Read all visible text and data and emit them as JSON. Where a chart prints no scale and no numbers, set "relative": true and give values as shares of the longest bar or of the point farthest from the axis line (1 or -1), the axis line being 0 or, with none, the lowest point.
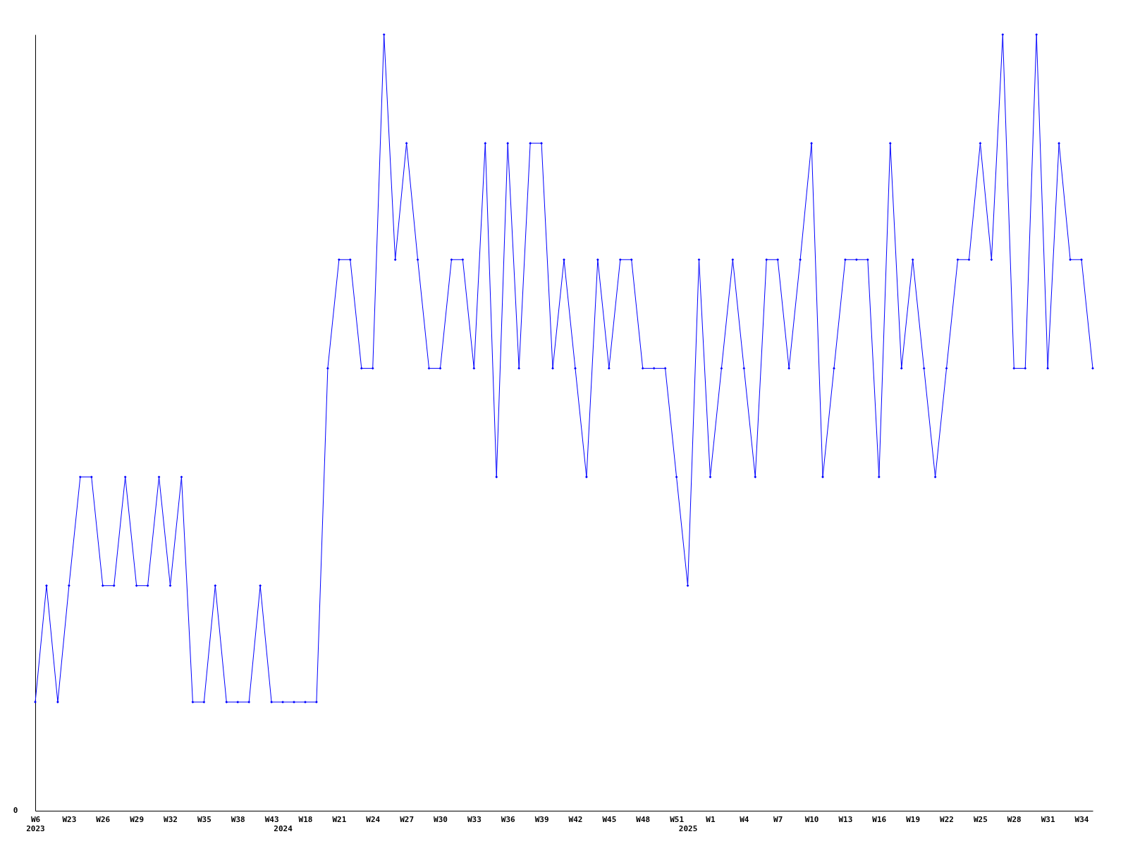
{
  "chart_data": {
    "type": "line",
    "relative": true,
    "marker": "diamond",
    "line_style": "solid",
    "annotations": [
      "0"
    ],
    "categories": [
      "W6\n2023",
      null,
      null,
      "W23",
      null,
      null,
      "W26",
      null,
      null,
      "W29",
      null,
      null,
      "W32",
      null,
      null,
      "W35",
      null,
      null,
      "W38",
      null,
      null,
      "W43",
      "\n2024",
      null,
      "W18",
      null,
      null,
      "W21",
      null,
      null,
      "W24",
      null,
      null,
      "W27",
      null,
      null,
      "W30",
      null,
      null,
      "W33",
      null,
      null,
      "W36",
      null,
      null,
      "W39",
      null,
      null,
      "W42",
      null,
      null,
      "W45",
      null,
      null,
      "W48",
      null,
      null,
      "W51",
      "\n2025",
      null,
      "W1",
      null,
      null,
      "W4",
      null,
      null,
      "W7",
      null,
      null,
      "W10",
      null,
      null,
      "W13",
      null,
      null,
      "W16",
      null,
      null,
      "W19",
      null,
      null,
      "W22",
      null,
      null,
      "W25",
      null,
      null,
      "W28",
      null,
      null,
      "W31",
      null,
      null,
      "W34",
      null
    ],
    "series": [
      {
        "color": "#0000ff",
        "values": [
          0.14,
          0.29,
          0.14,
          0.29,
          0.43,
          0.43,
          0.29,
          0.29,
          0.43,
          0.29,
          0.29,
          0.43,
          0.29,
          0.43,
          0.14,
          0.14,
          0.29,
          0.14,
          0.14,
          0.14,
          0.29,
          0.14,
          0.14,
          0.14,
          0.14,
          0.14,
          0.57,
          0.71,
          0.71,
          0.57,
          0.57,
          1,
          0.71,
          0.86,
          0.71,
          0.57,
          0.57,
          0.71,
          0.71,
          0.57,
          0.86,
          0.43,
          0.86,
          0.57,
          0.86,
          0.86,
          0.57,
          0.71,
          0.57,
          0.43,
          0.71,
          0.57,
          0.71,
          0.71,
          0.57,
          0.57,
          0.57,
          0.43,
          0.29,
          0.71,
          0.43,
          0.57,
          0.71,
          0.57,
          0.43,
          0.71,
          0.71,
          0.57,
          0.71,
          0.86,
          0.43,
          0.57,
          0.71,
          0.71,
          0.71,
          0.43,
          0.86,
          0.57,
          0.71,
          0.57,
          0.43,
          0.57,
          0.71,
          0.71,
          0.86,
          0.71,
          1,
          0.57,
          0.57,
          1,
          0.57,
          0.86,
          0.71,
          0.71,
          0.57
        ]
      }
    ]
  }
}
